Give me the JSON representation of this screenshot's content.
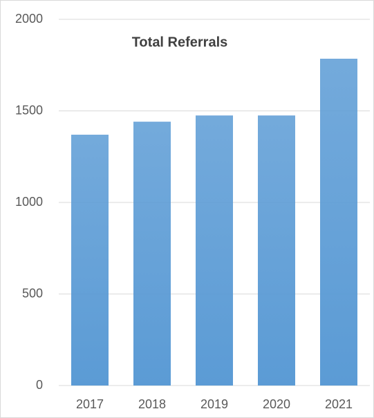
{
  "chart_data": {
    "type": "bar",
    "title": "Total Referrals",
    "categories": [
      "2017",
      "2018",
      "2019",
      "2020",
      "2021"
    ],
    "values": [
      1370,
      1441,
      1475,
      1475,
      1785
    ],
    "color": "#5b9bd5",
    "ylim": [
      0,
      2000
    ],
    "yticks": [
      0,
      500,
      1000,
      1500,
      2000
    ],
    "grid": true
  }
}
